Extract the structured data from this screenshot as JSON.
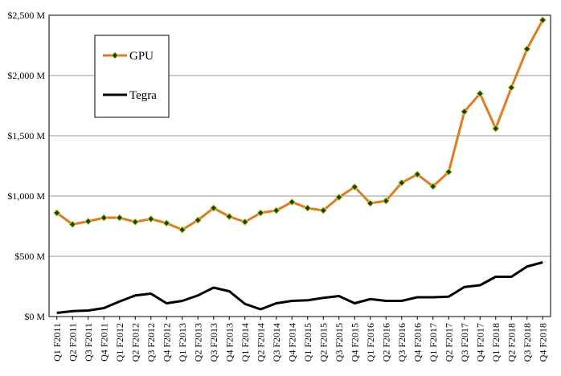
{
  "chart_data": {
    "type": "line",
    "x": [
      "Q1 F2011",
      "Q2 F2011",
      "Q3 F2011",
      "Q4 F2011",
      "Q1 F2012",
      "Q2 F2012",
      "Q3 F2012",
      "Q4 F2012",
      "Q1 F2013",
      "Q2 F2013",
      "Q3 F2013",
      "Q4 F2013",
      "Q1 F2014",
      "Q2 F2014",
      "Q3 F2014",
      "Q4 F2014",
      "Q1 F2015",
      "Q2 F2015",
      "Q3 F2015",
      "Q4 F2015",
      "Q1 F2016",
      "Q2 F2016",
      "Q3 F2016",
      "Q4 F2016",
      "Q1 F2017",
      "Q2 F2017",
      "Q3 F2017",
      "Q4 F2017",
      "Q1 F2018",
      "Q2 F2018",
      "Q3 F2018",
      "Q4 F2018"
    ],
    "series": [
      {
        "name": "GPU",
        "color": "#e07b1f",
        "marker_color": "#1a3d1a",
        "values": [
          860,
          765,
          790,
          820,
          820,
          785,
          810,
          775,
          720,
          800,
          900,
          830,
          785,
          860,
          880,
          950,
          900,
          880,
          990,
          1075,
          940,
          960,
          1110,
          1180,
          1080,
          1200,
          1700,
          1850,
          1560,
          1900,
          2220,
          2460
        ]
      },
      {
        "name": "Tegra",
        "color": "#000000",
        "values": [
          30,
          45,
          50,
          70,
          125,
          175,
          190,
          110,
          130,
          175,
          240,
          210,
          105,
          60,
          110,
          130,
          135,
          155,
          170,
          110,
          145,
          130,
          130,
          160,
          160,
          165,
          245,
          260,
          330,
          330,
          415,
          450
        ]
      }
    ],
    "y_ticks": [
      "$0 M",
      "$500 M",
      "$1,000 M",
      "$1,500 M",
      "$2,000 M",
      "$2,500 M"
    ],
    "ylim": [
      0,
      2500
    ],
    "y_tick_step": 500,
    "grid": true,
    "legend_position": "top-left"
  }
}
